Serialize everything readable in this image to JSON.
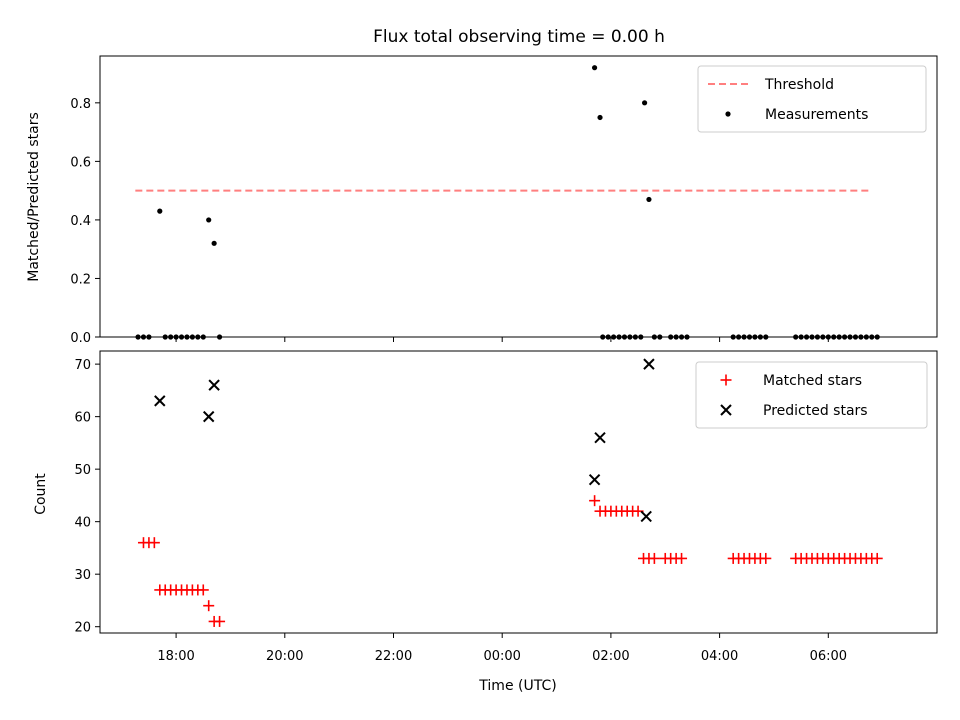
{
  "chart_data": {
    "title": "Flux total observing time = 0.00 h",
    "x_label": "Time (UTC)",
    "x_tick_labels": [
      "18:00",
      "20:00",
      "22:00",
      "00:00",
      "02:00",
      "04:00",
      "06:00"
    ],
    "x_tick_values": [
      18,
      20,
      22,
      24,
      26,
      28,
      30
    ],
    "xlim": [
      16.6,
      32.0
    ],
    "colors": {
      "threshold": "#ff7f7f",
      "measurements": "#000000",
      "matched": "#ff0000",
      "predicted": "#000000"
    },
    "top": {
      "type": "scatter",
      "ylabel": "Matched/Predicted stars",
      "ylim": [
        0.0,
        0.96
      ],
      "y_ticks": [
        0.0,
        0.2,
        0.4,
        0.6,
        0.8
      ],
      "y_tick_labels": [
        "0.0",
        "0.2",
        "0.4",
        "0.6",
        "0.8"
      ],
      "legend": [
        "Threshold",
        "Measurements"
      ],
      "threshold": {
        "name": "Threshold",
        "value": 0.5,
        "x_start": 17.25,
        "x_end": 30.8
      },
      "measurements": {
        "name": "Measurements",
        "x": [
          17.3,
          17.4,
          17.5,
          17.7,
          17.8,
          17.9,
          18.0,
          18.1,
          18.2,
          18.3,
          18.4,
          18.5,
          18.6,
          18.7,
          18.8,
          25.7,
          25.8,
          25.85,
          25.95,
          26.05,
          26.15,
          26.25,
          26.35,
          26.45,
          26.55,
          26.62,
          26.7,
          26.8,
          26.9,
          27.1,
          27.2,
          27.3,
          27.4,
          28.25,
          28.35,
          28.45,
          28.55,
          28.65,
          28.75,
          28.85,
          29.4,
          29.5,
          29.6,
          29.7,
          29.8,
          29.9,
          30.0,
          30.1,
          30.2,
          30.3,
          30.4,
          30.5,
          30.6,
          30.7,
          30.8,
          30.9
        ],
        "y": [
          0.0,
          0.0,
          0.0,
          0.43,
          0.0,
          0.0,
          0.0,
          0.0,
          0.0,
          0.0,
          0.0,
          0.0,
          0.4,
          0.32,
          0.0,
          0.92,
          0.75,
          0.0,
          0.0,
          0.0,
          0.0,
          0.0,
          0.0,
          0.0,
          0.0,
          0.8,
          0.47,
          0.0,
          0.0,
          0.0,
          0.0,
          0.0,
          0.0,
          0.0,
          0.0,
          0.0,
          0.0,
          0.0,
          0.0,
          0.0,
          0.0,
          0.0,
          0.0,
          0.0,
          0.0,
          0.0,
          0.0,
          0.0,
          0.0,
          0.0,
          0.0,
          0.0,
          0.0,
          0.0,
          0.0,
          0.0
        ]
      }
    },
    "bottom": {
      "type": "scatter",
      "ylabel": "Count",
      "ylim": [
        18.8,
        72.5
      ],
      "y_ticks": [
        20,
        30,
        40,
        50,
        60,
        70
      ],
      "y_tick_labels": [
        "20",
        "30",
        "40",
        "50",
        "60",
        "70"
      ],
      "legend": [
        "Matched stars",
        "Predicted stars"
      ],
      "matched": {
        "name": "Matched stars",
        "x": [
          17.4,
          17.5,
          17.6,
          17.7,
          17.8,
          17.9,
          18.0,
          18.1,
          18.2,
          18.3,
          18.4,
          18.5,
          18.6,
          18.7,
          18.8,
          25.7,
          25.8,
          25.9,
          26.0,
          26.1,
          26.2,
          26.3,
          26.4,
          26.5,
          26.6,
          26.7,
          26.8,
          27.0,
          27.1,
          27.2,
          27.3,
          28.25,
          28.35,
          28.45,
          28.55,
          28.65,
          28.75,
          28.85,
          29.4,
          29.5,
          29.6,
          29.7,
          29.8,
          29.9,
          30.0,
          30.1,
          30.2,
          30.3,
          30.4,
          30.5,
          30.6,
          30.7,
          30.8,
          30.9
        ],
        "y": [
          36,
          36,
          36,
          27,
          27,
          27,
          27,
          27,
          27,
          27,
          27,
          27,
          24,
          21,
          21,
          44,
          42,
          42,
          42,
          42,
          42,
          42,
          42,
          42,
          33,
          33,
          33,
          33,
          33,
          33,
          33,
          33,
          33,
          33,
          33,
          33,
          33,
          33,
          33,
          33,
          33,
          33,
          33,
          33,
          33,
          33,
          33,
          33,
          33,
          33,
          33,
          33,
          33,
          33
        ]
      },
      "predicted": {
        "name": "Predicted stars",
        "x": [
          17.7,
          18.6,
          18.7,
          25.7,
          25.8,
          26.65,
          26.7
        ],
        "y": [
          63,
          60,
          66,
          48,
          56,
          41,
          70
        ]
      }
    }
  }
}
